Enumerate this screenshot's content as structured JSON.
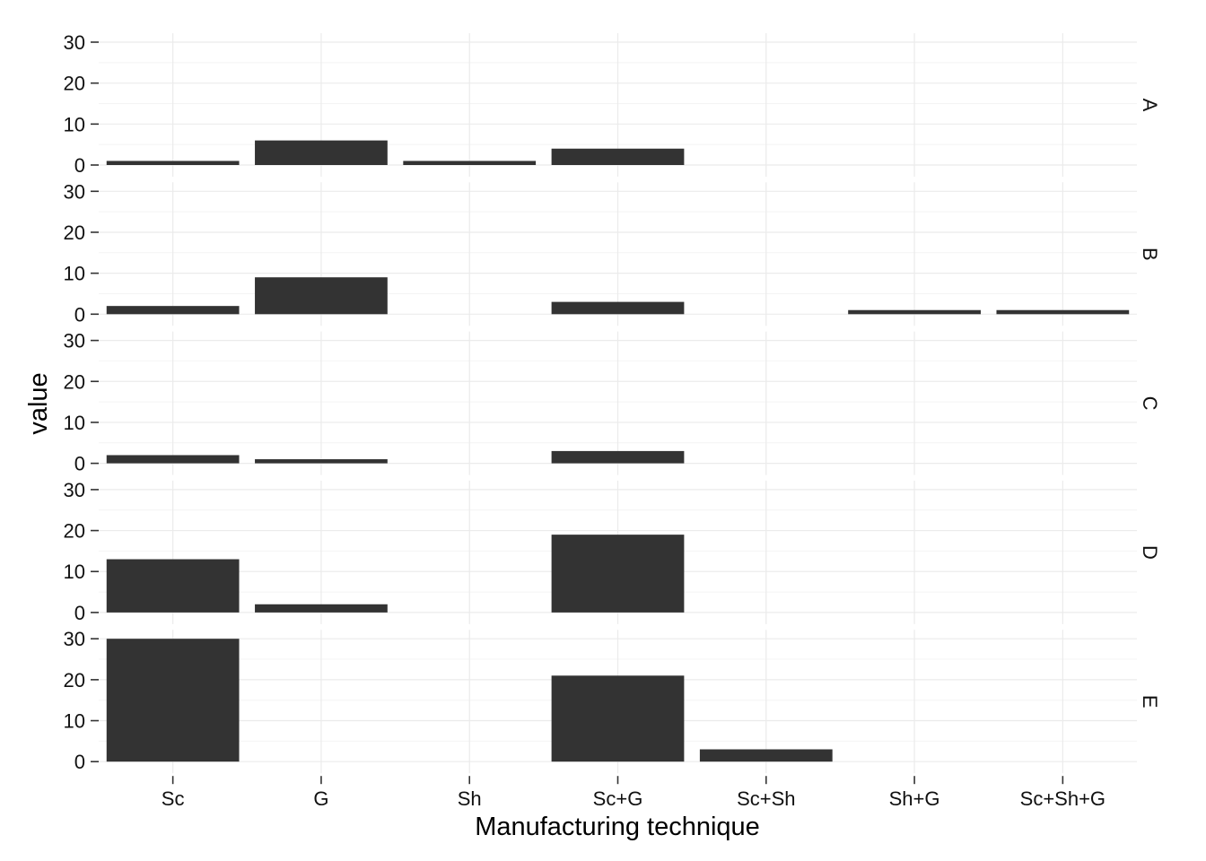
{
  "chart_data": {
    "type": "bar",
    "layout": "faceted-rows",
    "xlabel": "Manufacturing technique",
    "ylabel": "value",
    "categories": [
      "Sc",
      "G",
      "Sh",
      "Sc+G",
      "Sc+Sh",
      "Sh+G",
      "Sc+Sh+G"
    ],
    "ylim": [
      0,
      30
    ],
    "yticks": [
      0,
      10,
      20,
      30
    ],
    "grid": true,
    "bar_color": "#333333",
    "facets": [
      {
        "label": "A",
        "values": [
          1,
          6,
          1,
          4,
          0,
          0,
          0
        ]
      },
      {
        "label": "B",
        "values": [
          2,
          9,
          0,
          3,
          0,
          1,
          1
        ]
      },
      {
        "label": "C",
        "values": [
          2,
          1,
          0,
          3,
          0,
          0,
          0
        ]
      },
      {
        "label": "D",
        "values": [
          13,
          2,
          0,
          19,
          0,
          0,
          0
        ]
      },
      {
        "label": "E",
        "values": [
          30,
          0,
          0,
          21,
          3,
          0,
          0
        ]
      }
    ]
  }
}
